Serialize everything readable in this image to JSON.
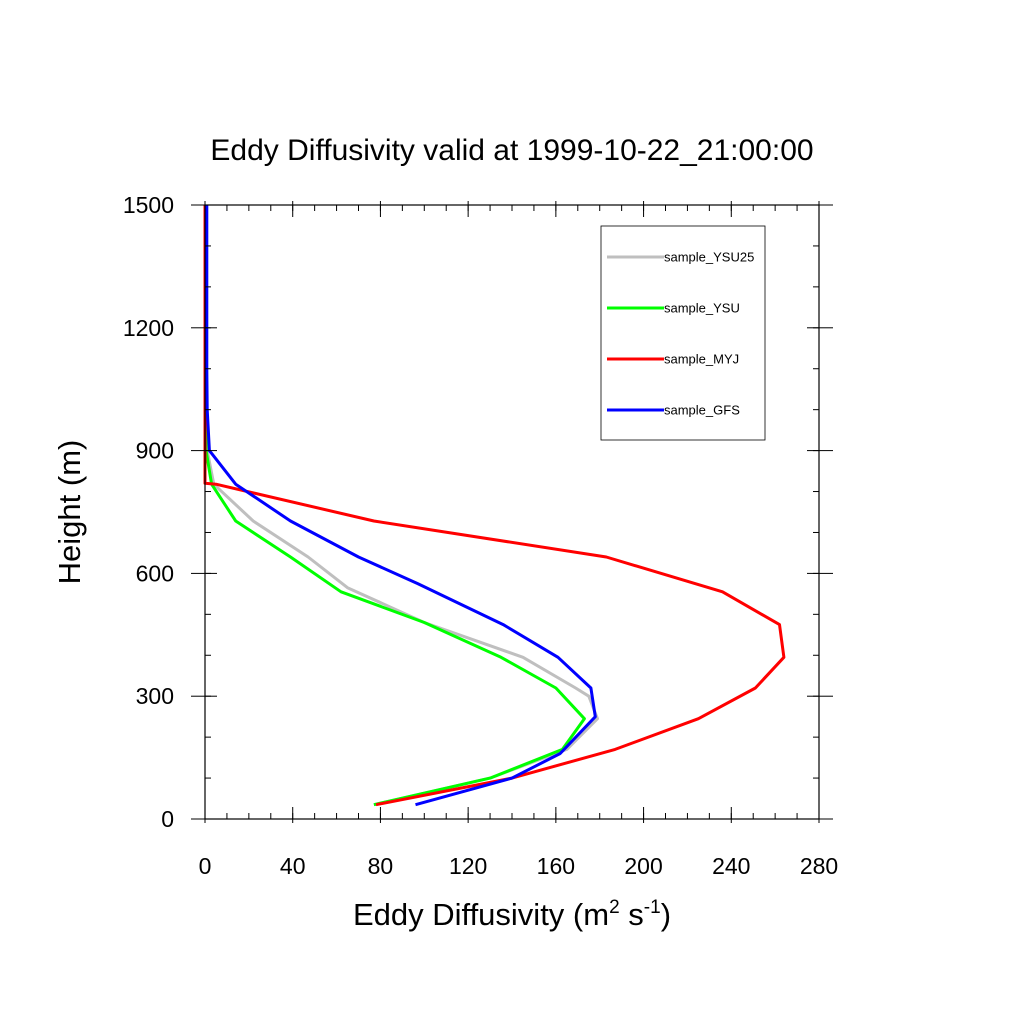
{
  "chart_data": {
    "type": "line",
    "title": "Eddy Diffusivity valid at 1999-10-22_21:00:00",
    "xlabel": "Eddy Diffusivity (m<sup>2</sup> s<sup>-1</sup>)",
    "xlabel_parts": [
      "Eddy Diffusivity (m",
      "2",
      " s",
      "-1",
      ")"
    ],
    "ylabel": "Height (m)",
    "xlim": [
      0,
      280
    ],
    "ylim": [
      0,
      1500
    ],
    "xticks": [
      0,
      40,
      80,
      120,
      160,
      200,
      240,
      280
    ],
    "yticks": [
      0,
      300,
      600,
      900,
      1200,
      1500
    ],
    "x_minor_step": 10,
    "y_minor_step": 100,
    "grid": false,
    "legend_position": "top-right",
    "series": [
      {
        "name": "sample_YSU25",
        "color": "#bfbfbf",
        "points": [
          [
            77,
            35
          ],
          [
            130,
            100
          ],
          [
            165,
            170
          ],
          [
            179,
            245
          ],
          [
            175,
            300
          ],
          [
            169,
            320
          ],
          [
            145,
            395
          ],
          [
            100,
            480
          ],
          [
            65,
            565
          ],
          [
            47,
            640
          ],
          [
            22,
            728
          ],
          [
            4,
            818
          ],
          [
            1,
            900
          ],
          [
            0.6,
            1000
          ],
          [
            0.5,
            1100
          ],
          [
            0.5,
            1500
          ]
        ]
      },
      {
        "name": "sample_YSU",
        "color": "#00ff00",
        "points": [
          [
            77,
            35
          ],
          [
            130,
            100
          ],
          [
            163,
            170
          ],
          [
            173,
            245
          ],
          [
            160,
            320
          ],
          [
            135,
            395
          ],
          [
            100,
            480
          ],
          [
            62,
            555
          ],
          [
            39,
            640
          ],
          [
            14,
            728
          ],
          [
            3,
            818
          ],
          [
            0.5,
            900
          ],
          [
            0.5,
            1000
          ],
          [
            0.5,
            1500
          ]
        ]
      },
      {
        "name": "sample_MYJ",
        "color": "#ff0000",
        "points": [
          [
            78,
            35
          ],
          [
            140,
            100
          ],
          [
            187,
            170
          ],
          [
            225,
            245
          ],
          [
            251,
            320
          ],
          [
            264,
            395
          ],
          [
            262,
            475
          ],
          [
            236,
            555
          ],
          [
            183,
            640
          ],
          [
            77,
            728
          ],
          [
            5,
            818
          ],
          [
            0,
            820
          ],
          [
            0,
            1000
          ],
          [
            0,
            1500
          ]
        ]
      },
      {
        "name": "sample_GFS",
        "color": "#0000ff",
        "points": [
          [
            96,
            35
          ],
          [
            140,
            100
          ],
          [
            162,
            160
          ],
          [
            178,
            250
          ],
          [
            176,
            320
          ],
          [
            161,
            395
          ],
          [
            136,
            475
          ],
          [
            97,
            575
          ],
          [
            70,
            640
          ],
          [
            39,
            728
          ],
          [
            14,
            818
          ],
          [
            2,
            900
          ],
          [
            1,
            1000
          ],
          [
            0.8,
            1100
          ],
          [
            0.8,
            1500
          ]
        ]
      }
    ]
  }
}
